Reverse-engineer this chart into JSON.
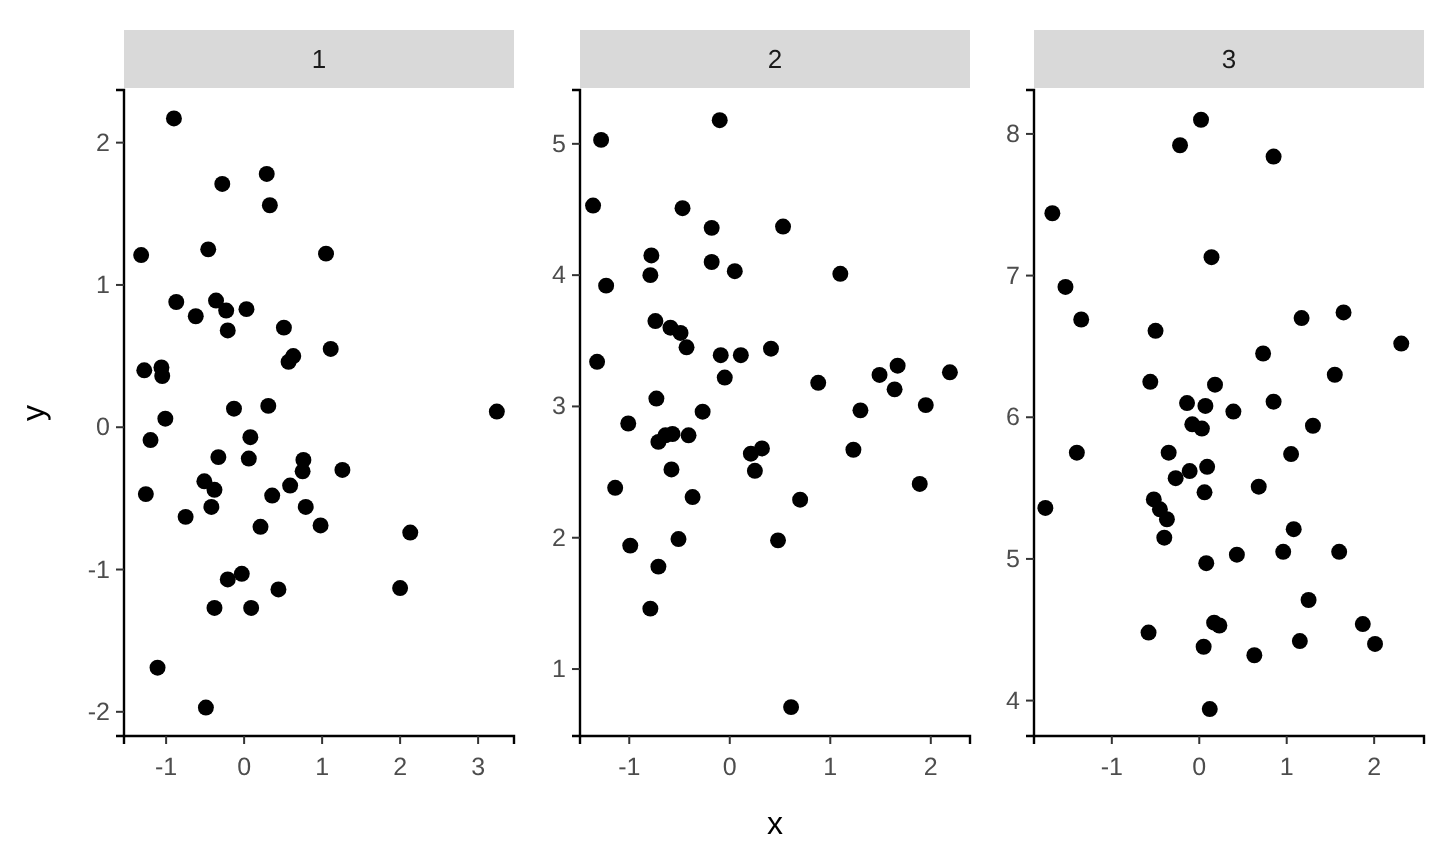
{
  "chart_data": [
    {
      "type": "scatter",
      "title": "1",
      "ylabel": "y",
      "xlim": [
        -1.54,
        3.46
      ],
      "ylim": [
        -2.17,
        2.37
      ],
      "xticks": [
        -1,
        0,
        1,
        2,
        3
      ],
      "yticks": [
        -2,
        -1,
        0,
        1,
        2
      ],
      "grid": false,
      "marker": "circle",
      "series": [
        {
          "color": "#000000",
          "x": [
            -0.9,
            0.29,
            -0.28,
            0.33,
            -1.32,
            -0.46,
            1.05,
            -0.87,
            -0.62,
            -0.36,
            -0.23,
            0.03,
            -0.21,
            0.51,
            0.57,
            0.63,
            1.11,
            -1.28,
            -1.06,
            -1.05,
            -1.01,
            -0.13,
            0.31,
            -1.2,
            0.08,
            0.06,
            -0.33,
            0.76,
            0.75,
            1.26,
            -1.26,
            -0.51,
            -0.38,
            -0.42,
            0.36,
            0.59,
            0.79,
            -0.75,
            0.21,
            0.98,
            2.13,
            -0.21,
            -0.03,
            0.44,
            2.0,
            -0.38,
            0.09,
            -1.11,
            -0.49,
            3.24
          ],
          "values": [
            2.17,
            1.78,
            1.71,
            1.56,
            1.21,
            1.25,
            1.22,
            0.88,
            0.78,
            0.89,
            0.82,
            0.83,
            0.68,
            0.7,
            0.46,
            0.5,
            0.55,
            0.4,
            0.42,
            0.36,
            0.06,
            0.13,
            0.15,
            -0.09,
            -0.07,
            -0.22,
            -0.21,
            -0.23,
            -0.31,
            -0.3,
            -0.47,
            -0.38,
            -0.44,
            -0.56,
            -0.48,
            -0.41,
            -0.56,
            -0.63,
            -0.7,
            -0.69,
            -0.74,
            -1.07,
            -1.03,
            -1.14,
            -1.13,
            -1.27,
            -1.27,
            -1.69,
            -1.97,
            0.11
          ]
        }
      ]
    },
    {
      "type": "scatter",
      "title": "2",
      "xlabel": "x",
      "xlim": [
        -1.49,
        2.39
      ],
      "ylim": [
        0.49,
        5.41
      ],
      "xticks": [
        -1,
        0,
        1,
        2
      ],
      "yticks": [
        1,
        2,
        3,
        4,
        5
      ],
      "grid": false,
      "marker": "circle",
      "series": [
        {
          "color": "#000000",
          "x": [
            -0.1,
            -1.28,
            -1.36,
            -0.47,
            -0.18,
            0.53,
            -0.78,
            -0.79,
            -0.18,
            0.05,
            1.1,
            -1.23,
            -0.74,
            -0.59,
            -0.49,
            -0.43,
            -1.32,
            -0.09,
            0.11,
            0.41,
            -0.05,
            0.88,
            1.49,
            1.67,
            1.64,
            2.19,
            -0.73,
            -1.01,
            -0.27,
            1.3,
            1.95,
            -0.71,
            -0.64,
            -0.57,
            -0.41,
            0.21,
            0.32,
            0.25,
            1.23,
            -0.58,
            -1.14,
            -0.37,
            0.7,
            1.89,
            -0.99,
            -0.51,
            0.48,
            -0.71,
            -0.79,
            0.61
          ],
          "values": [
            5.18,
            5.03,
            4.53,
            4.51,
            4.36,
            4.37,
            4.15,
            4.0,
            4.1,
            4.03,
            4.01,
            3.92,
            3.65,
            3.6,
            3.56,
            3.45,
            3.34,
            3.39,
            3.39,
            3.44,
            3.22,
            3.18,
            3.24,
            3.31,
            3.13,
            3.26,
            3.06,
            2.87,
            2.96,
            2.97,
            3.01,
            2.73,
            2.78,
            2.79,
            2.78,
            2.64,
            2.68,
            2.51,
            2.67,
            2.52,
            2.38,
            2.31,
            2.29,
            2.41,
            1.94,
            1.99,
            1.98,
            1.78,
            1.46,
            0.71
          ]
        }
      ]
    },
    {
      "type": "scatter",
      "title": "3",
      "xlim": [
        -1.89,
        2.57
      ],
      "ylim": [
        3.75,
        8.31
      ],
      "xticks": [
        -1,
        0,
        1,
        2
      ],
      "yticks": [
        4,
        5,
        6,
        7,
        8
      ],
      "grid": false,
      "marker": "circle",
      "series": [
        {
          "color": "#000000",
          "x": [
            0.02,
            -0.22,
            0.85,
            -1.68,
            0.14,
            -1.53,
            -1.35,
            1.17,
            1.65,
            2.31,
            -0.5,
            0.73,
            1.55,
            -0.56,
            0.18,
            0.85,
            -0.14,
            0.07,
            0.39,
            -0.08,
            0.03,
            1.3,
            -1.4,
            -0.35,
            1.05,
            -0.11,
            -0.27,
            0.09,
            0.06,
            0.68,
            -1.76,
            -0.52,
            -0.45,
            -0.37,
            -0.4,
            1.08,
            0.08,
            0.43,
            0.96,
            1.6,
            1.25,
            -0.58,
            0.17,
            0.23,
            1.87,
            1.15,
            2.01,
            0.05,
            0.63,
            0.12
          ],
          "values": [
            8.1,
            7.92,
            7.84,
            7.44,
            7.13,
            6.92,
            6.69,
            6.7,
            6.74,
            6.52,
            6.61,
            6.45,
            6.3,
            6.25,
            6.23,
            6.11,
            6.1,
            6.08,
            6.04,
            5.95,
            5.92,
            5.94,
            5.75,
            5.75,
            5.74,
            5.62,
            5.57,
            5.65,
            5.47,
            5.51,
            5.36,
            5.42,
            5.35,
            5.28,
            5.15,
            5.21,
            4.97,
            5.03,
            5.05,
            5.05,
            4.71,
            4.48,
            4.55,
            4.53,
            4.54,
            4.42,
            4.4,
            4.38,
            4.32,
            3.94
          ]
        }
      ]
    }
  ]
}
